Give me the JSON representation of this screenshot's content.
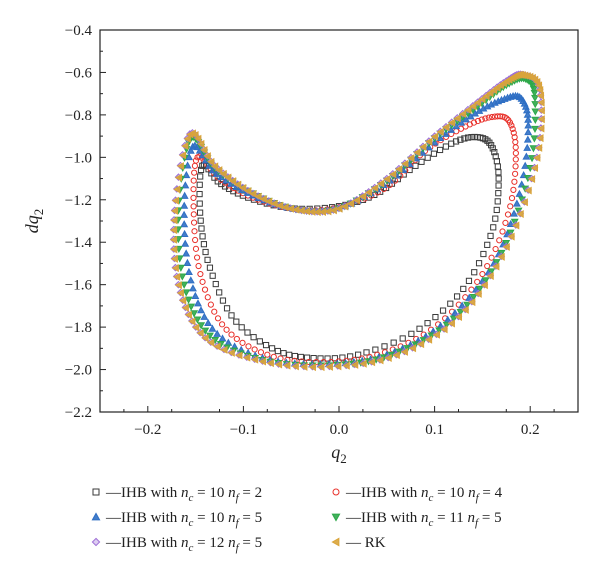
{
  "chart_data": {
    "type": "scatter",
    "title": "",
    "xlabel": "q",
    "xlabel_sub": "2",
    "ylabel": "dq",
    "ylabel_sub": "2",
    "xlim": [
      -0.25,
      0.25
    ],
    "ylim": [
      -2.2,
      -0.4
    ],
    "xticks": [
      -0.2,
      -0.1,
      0.0,
      0.1,
      0.2
    ],
    "xtick_labels": [
      "−0.2",
      "−0.1",
      "0.0",
      "0.1",
      "0.2"
    ],
    "yticks": [
      -0.4,
      -0.6,
      -0.8,
      -1.0,
      -1.2,
      -1.4,
      -1.6,
      -1.8,
      -2.0,
      -2.2
    ],
    "ytick_labels": [
      "−0.4",
      "−0.6",
      "−0.8",
      "−1.0",
      "−1.2",
      "−1.4",
      "−1.6",
      "−1.8",
      "−2.0",
      "−2.2"
    ],
    "grid": false,
    "legend_position": "bottom",
    "series": [
      {
        "label_prefix": "—IHB with ",
        "nc": "10",
        "nf": "2",
        "marker": "square",
        "color": "#3a3a3a",
        "anchors": [
          [
            -0.143,
            -1.04
          ],
          [
            -0.125,
            -1.12
          ],
          [
            -0.095,
            -1.19
          ],
          [
            -0.05,
            -1.24
          ],
          [
            0.0,
            -1.23
          ],
          [
            0.04,
            -1.17
          ],
          [
            0.08,
            -1.04
          ],
          [
            0.12,
            -0.93
          ],
          [
            0.145,
            -0.905
          ],
          [
            0.16,
            -0.95
          ],
          [
            0.167,
            -1.1
          ],
          [
            0.16,
            -1.35
          ],
          [
            0.13,
            -1.62
          ],
          [
            0.08,
            -1.82
          ],
          [
            0.02,
            -1.93
          ],
          [
            -0.03,
            -1.945
          ],
          [
            -0.07,
            -1.9
          ],
          [
            -0.11,
            -1.76
          ],
          [
            -0.135,
            -1.52
          ],
          [
            -0.145,
            -1.28
          ],
          [
            -0.143,
            -1.04
          ]
        ]
      },
      {
        "label_prefix": "—IHB with ",
        "nc": "10",
        "nf": "4",
        "marker": "circle",
        "color": "#e8302a",
        "anchors": [
          [
            -0.148,
            -1.0
          ],
          [
            -0.125,
            -1.1
          ],
          [
            -0.09,
            -1.19
          ],
          [
            -0.045,
            -1.245
          ],
          [
            0.0,
            -1.235
          ],
          [
            0.05,
            -1.14
          ],
          [
            0.09,
            -0.97
          ],
          [
            0.13,
            -0.86
          ],
          [
            0.16,
            -0.81
          ],
          [
            0.178,
            -0.83
          ],
          [
            0.185,
            -0.98
          ],
          [
            0.178,
            -1.25
          ],
          [
            0.15,
            -1.55
          ],
          [
            0.1,
            -1.8
          ],
          [
            0.04,
            -1.93
          ],
          [
            -0.02,
            -1.965
          ],
          [
            -0.075,
            -1.93
          ],
          [
            -0.12,
            -1.8
          ],
          [
            -0.145,
            -1.55
          ],
          [
            -0.152,
            -1.25
          ],
          [
            -0.148,
            -1.0
          ]
        ]
      },
      {
        "label_prefix": "—IHB with ",
        "nc": "10",
        "nf": "5",
        "marker": "triangle-up",
        "color": "#2f6fc4",
        "anchors": [
          [
            -0.153,
            -0.95
          ],
          [
            -0.13,
            -1.07
          ],
          [
            -0.09,
            -1.18
          ],
          [
            -0.045,
            -1.245
          ],
          [
            0.0,
            -1.24
          ],
          [
            0.05,
            -1.12
          ],
          [
            0.1,
            -0.93
          ],
          [
            0.14,
            -0.8
          ],
          [
            0.17,
            -0.73
          ],
          [
            0.19,
            -0.72
          ],
          [
            0.198,
            -0.85
          ],
          [
            0.19,
            -1.15
          ],
          [
            0.162,
            -1.5
          ],
          [
            0.11,
            -1.78
          ],
          [
            0.05,
            -1.93
          ],
          [
            -0.015,
            -1.975
          ],
          [
            -0.08,
            -1.945
          ],
          [
            -0.13,
            -1.82
          ],
          [
            -0.155,
            -1.58
          ],
          [
            -0.162,
            -1.25
          ],
          [
            -0.153,
            -0.95
          ]
        ]
      },
      {
        "label_prefix": "—IHB with ",
        "nc": "11",
        "nf": "5",
        "marker": "triangle-down",
        "color": "#2ea84a",
        "anchors": [
          [
            -0.155,
            -0.91
          ],
          [
            -0.13,
            -1.05
          ],
          [
            -0.09,
            -1.17
          ],
          [
            -0.045,
            -1.245
          ],
          [
            0.0,
            -1.24
          ],
          [
            0.05,
            -1.11
          ],
          [
            0.1,
            -0.91
          ],
          [
            0.145,
            -0.76
          ],
          [
            0.175,
            -0.66
          ],
          [
            0.195,
            -0.63
          ],
          [
            0.205,
            -0.72
          ],
          [
            0.2,
            -1.05
          ],
          [
            0.17,
            -1.45
          ],
          [
            0.12,
            -1.76
          ],
          [
            0.055,
            -1.93
          ],
          [
            -0.01,
            -1.98
          ],
          [
            -0.08,
            -1.955
          ],
          [
            -0.135,
            -1.84
          ],
          [
            -0.162,
            -1.6
          ],
          [
            -0.168,
            -1.25
          ],
          [
            -0.155,
            -0.91
          ]
        ]
      },
      {
        "label_prefix": "—IHB with ",
        "nc": "12",
        "nf": "5",
        "marker": "diamond",
        "color": "#9e6fd6",
        "anchors": [
          [
            -0.156,
            -0.89
          ],
          [
            -0.13,
            -1.04
          ],
          [
            -0.09,
            -1.17
          ],
          [
            -0.045,
            -1.245
          ],
          [
            0.0,
            -1.24
          ],
          [
            0.05,
            -1.1
          ],
          [
            0.1,
            -0.9
          ],
          [
            0.145,
            -0.74
          ],
          [
            0.175,
            -0.64
          ],
          [
            0.192,
            -0.61
          ],
          [
            0.21,
            -0.68
          ],
          [
            0.207,
            -1.0
          ],
          [
            0.175,
            -1.42
          ],
          [
            0.125,
            -1.75
          ],
          [
            0.06,
            -1.93
          ],
          [
            -0.01,
            -1.985
          ],
          [
            -0.08,
            -1.96
          ],
          [
            -0.14,
            -1.85
          ],
          [
            -0.168,
            -1.6
          ],
          [
            -0.172,
            -1.25
          ],
          [
            -0.156,
            -0.89
          ]
        ]
      },
      {
        "label_prefix": "— ",
        "label": "RK",
        "marker": "triangle-left",
        "color": "#d9a43a",
        "anchors": [
          [
            -0.156,
            -0.89
          ],
          [
            -0.13,
            -1.04
          ],
          [
            -0.09,
            -1.17
          ],
          [
            -0.045,
            -1.245
          ],
          [
            0.0,
            -1.24
          ],
          [
            0.05,
            -1.1
          ],
          [
            0.1,
            -0.9
          ],
          [
            0.145,
            -0.74
          ],
          [
            0.175,
            -0.64
          ],
          [
            0.192,
            -0.61
          ],
          [
            0.21,
            -0.68
          ],
          [
            0.207,
            -1.0
          ],
          [
            0.175,
            -1.42
          ],
          [
            0.125,
            -1.75
          ],
          [
            0.06,
            -1.93
          ],
          [
            -0.01,
            -1.985
          ],
          [
            -0.08,
            -1.96
          ],
          [
            -0.14,
            -1.85
          ],
          [
            -0.168,
            -1.6
          ],
          [
            -0.172,
            -1.25
          ],
          [
            -0.156,
            -0.89
          ]
        ]
      }
    ]
  }
}
